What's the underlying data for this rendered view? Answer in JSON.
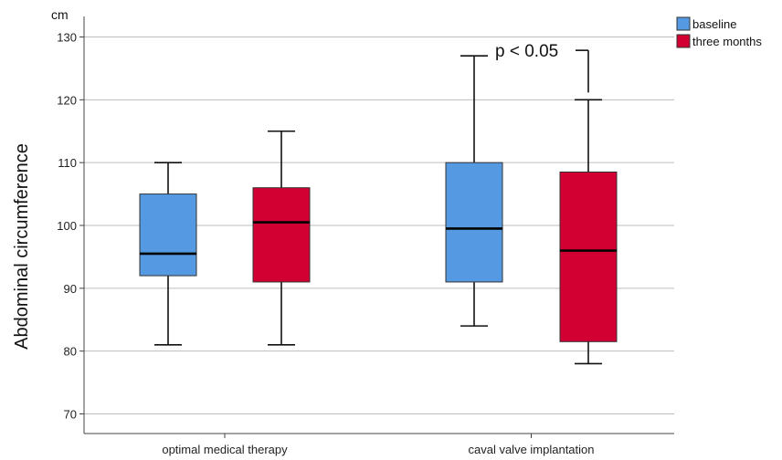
{
  "chart_data": {
    "type": "boxplot",
    "ylabel": "Abdominal circumference",
    "yunit": "cm",
    "ylim": [
      65,
      135
    ],
    "yticks": [
      70,
      80,
      90,
      100,
      110,
      120,
      130
    ],
    "grid": "horizontal",
    "legend_position": "top-right",
    "categories": [
      "optimal medical therapy",
      "caval valve implantation"
    ],
    "series": [
      {
        "name": "baseline",
        "color": "#5499e2",
        "boxes": [
          {
            "min": 81,
            "q1": 92,
            "median": 95.5,
            "q3": 105,
            "max": 110
          },
          {
            "min": 84,
            "q1": 91,
            "median": 99.5,
            "q3": 110,
            "max": 127
          }
        ]
      },
      {
        "name": "three months",
        "color": "#d20032",
        "boxes": [
          {
            "min": 81,
            "q1": 91,
            "median": 100.5,
            "q3": 106,
            "max": 115
          },
          {
            "min": 78,
            "q1": 81.5,
            "median": 96,
            "q3": 108.5,
            "max": 120
          }
        ]
      }
    ],
    "annotation": {
      "text": "p < 0.05",
      "category": "caval valve implantation",
      "from": 127,
      "to": 120
    }
  }
}
